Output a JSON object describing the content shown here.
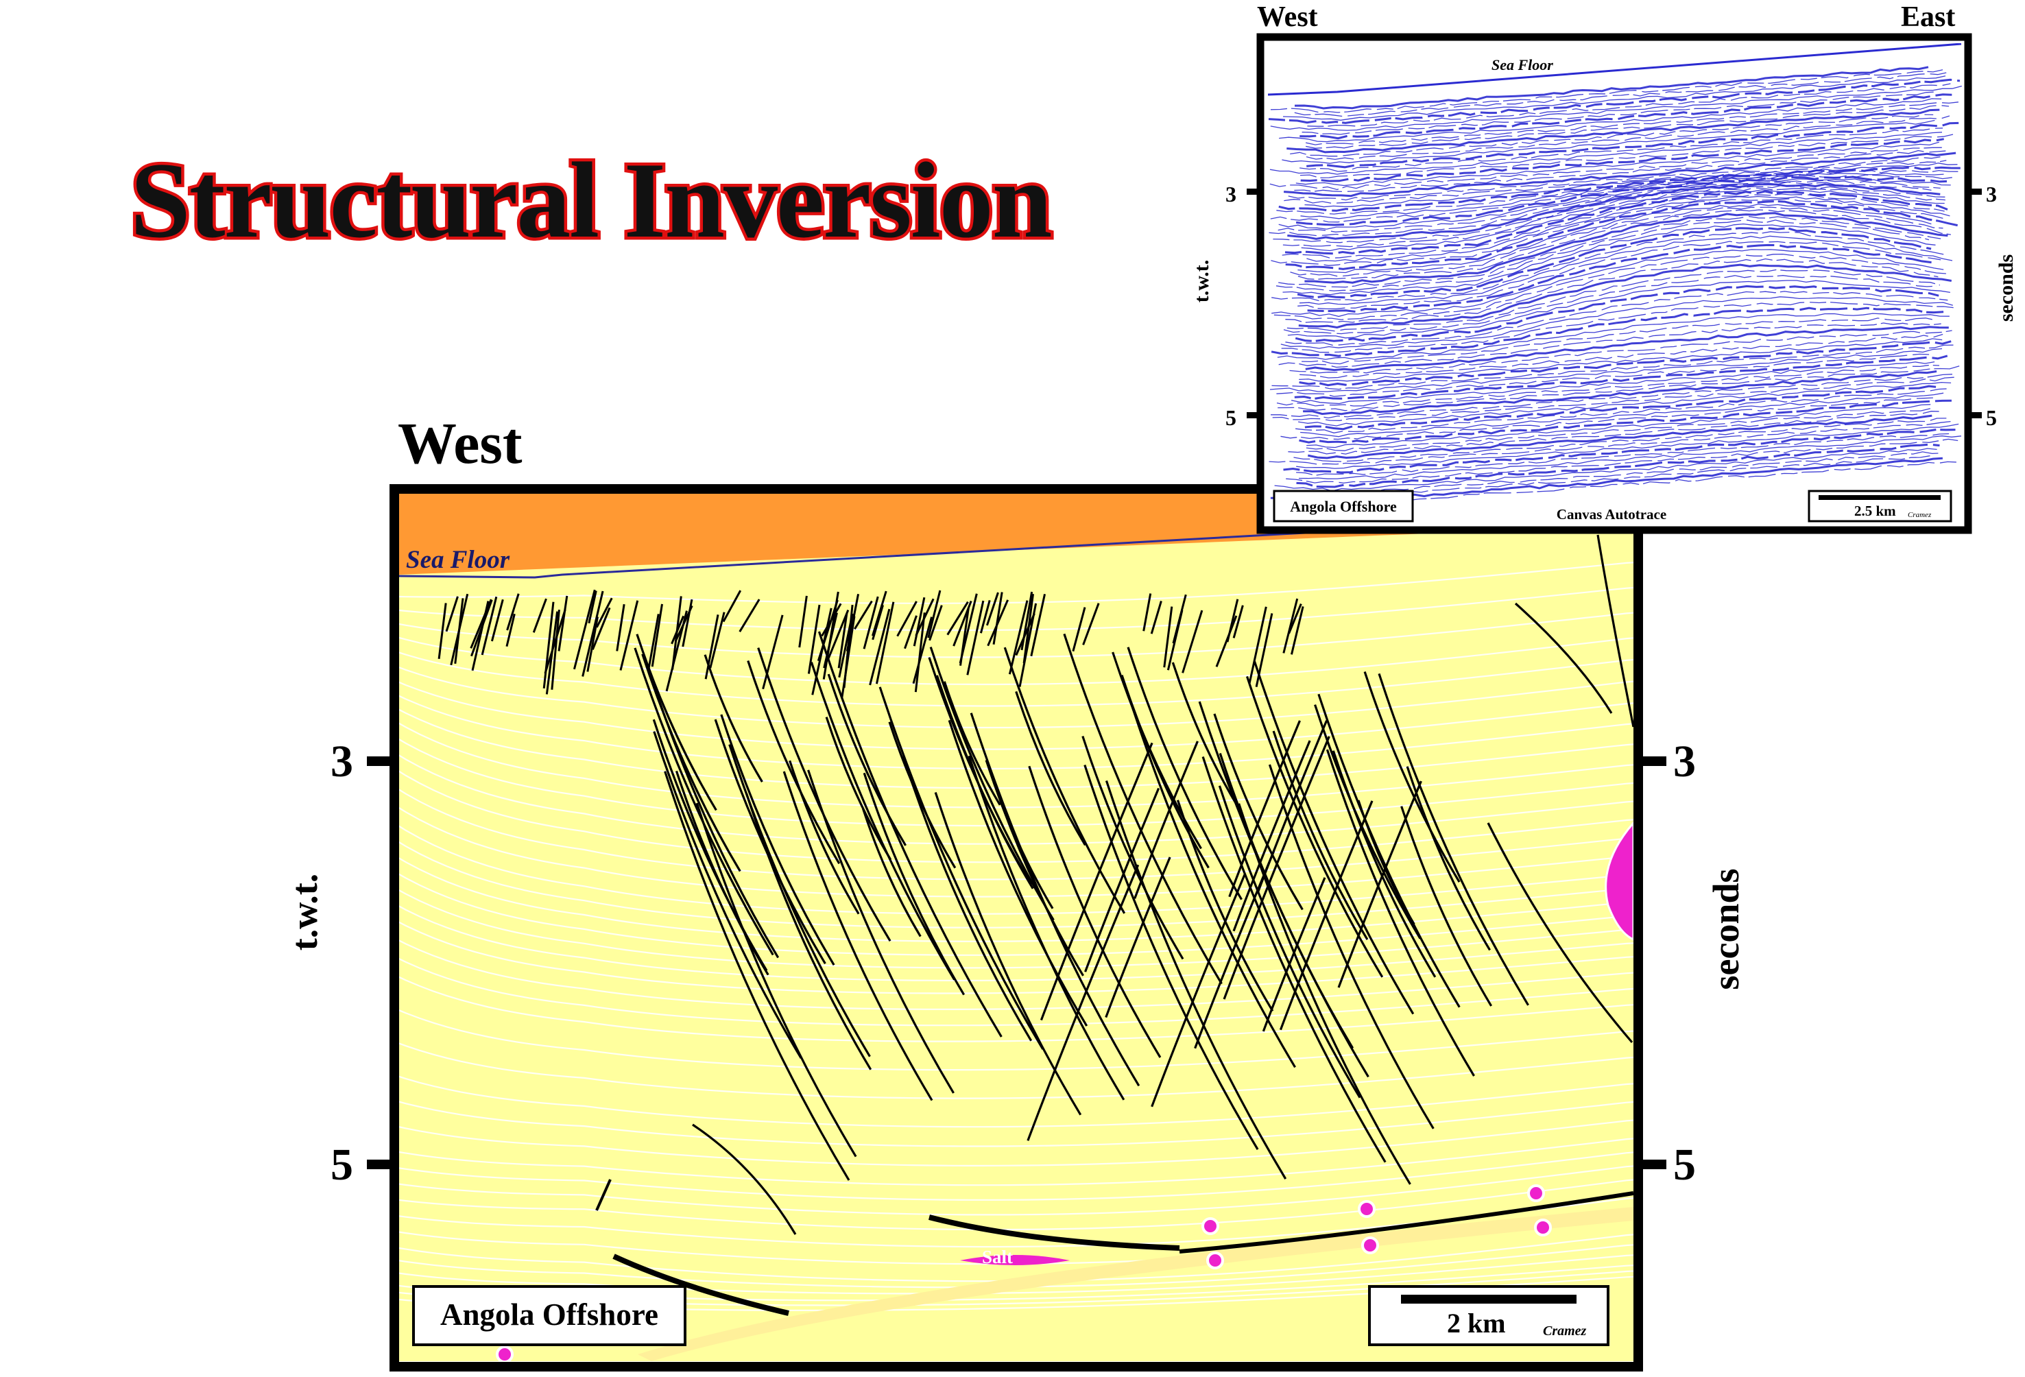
{
  "title": "Structural Inversion",
  "main_section": {
    "west_label": "West",
    "sea_floor_label": "Sea Floor",
    "axis_left_title": "t.w.t.",
    "axis_right_title": "seconds",
    "tick_labels": [
      "3",
      "5"
    ],
    "location_box": "Angola Offshore",
    "scale_label": "2 km",
    "credit": "Cramez",
    "salt_label": "Salt"
  },
  "inset_section": {
    "west_label": "West",
    "east_label": "East",
    "sea_floor_label": "Sea Floor",
    "axis_left_title": "t.w.t.",
    "axis_right_title": "seconds",
    "tick_labels": [
      "3",
      "5"
    ],
    "location_box": "Angola Offshore",
    "software_label": "Canvas Autotrace",
    "scale_label": "2.5 km",
    "credit": "Cramez"
  },
  "colors": {
    "title_fill": "#111111",
    "title_outline": "#e01010",
    "frame": "#000000",
    "water": "#e6fbfb",
    "sea_floor_line": "#2a2a9a",
    "seismic_reflector": "#2a2ad0",
    "layers": [
      "#ffff9e",
      "#fff27a",
      "#ffff00",
      "#ffdd33",
      "#c8ff88",
      "#88ff00",
      "#55ff55",
      "#66dd00",
      "#ffaa55",
      "#ff8811",
      "#dd6600",
      "#99ffcc",
      "#55aaff",
      "#2288ff",
      "#fff09a",
      "#ff9933"
    ],
    "salt": "#ee22cc",
    "faults": "#000000"
  }
}
